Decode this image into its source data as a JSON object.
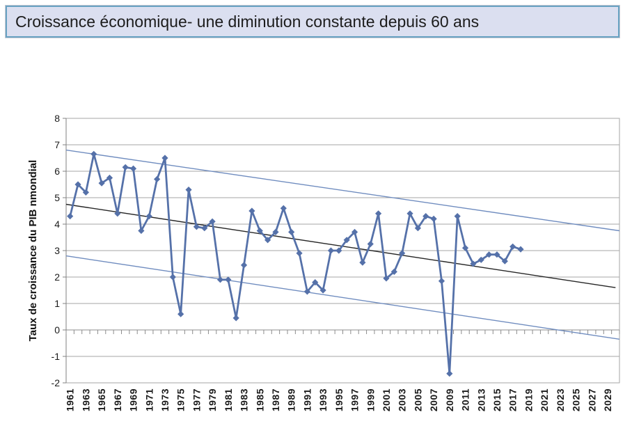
{
  "header": {
    "title": "Croissance économique- une diminution constante depuis 60 ans"
  },
  "chart_data": {
    "type": "line",
    "title": "Croissance économique- une diminution constante depuis 60 ans",
    "xlabel": "",
    "ylabel": "Taux de croissance du PIB nmondial",
    "ylim": [
      -2,
      8
    ],
    "ytick_step": 1,
    "grid": true,
    "legend": false,
    "gridline_color": "#a6a6a6",
    "axis_color": "#808080",
    "x_axis_years": {
      "first_label": 1961,
      "last_label": 2029,
      "label_step": 2,
      "axis_start": 1961,
      "axis_end": 2030
    },
    "series": [
      {
        "name": "Taux de croissance du PIB mondial",
        "color": "#5571a9",
        "marker": "diamond",
        "years": [
          1961,
          1962,
          1963,
          1964,
          1965,
          1966,
          1967,
          1968,
          1969,
          1970,
          1971,
          1972,
          1973,
          1974,
          1975,
          1976,
          1977,
          1978,
          1979,
          1980,
          1981,
          1982,
          1983,
          1984,
          1985,
          1986,
          1987,
          1988,
          1989,
          1990,
          1991,
          1992,
          1993,
          1994,
          1995,
          1996,
          1997,
          1998,
          1999,
          2000,
          2001,
          2002,
          2003,
          2004,
          2005,
          2006,
          2007,
          2008,
          2009,
          2010,
          2011,
          2012,
          2013,
          2014,
          2015,
          2016,
          2017,
          2018
        ],
        "values": [
          4.3,
          5.5,
          5.2,
          6.65,
          5.55,
          5.75,
          4.4,
          6.15,
          6.1,
          3.75,
          4.3,
          5.7,
          6.5,
          2.0,
          0.6,
          5.3,
          3.9,
          3.85,
          4.1,
          1.9,
          1.9,
          0.45,
          2.45,
          4.5,
          3.75,
          3.4,
          3.7,
          4.6,
          3.7,
          2.9,
          1.45,
          1.8,
          1.5,
          3.0,
          3.0,
          3.4,
          3.7,
          2.55,
          3.25,
          4.4,
          1.95,
          2.2,
          2.9,
          4.4,
          3.85,
          4.3,
          4.2,
          1.85,
          -1.65,
          4.3,
          3.1,
          2.5,
          2.65,
          2.85,
          2.85,
          2.6,
          3.15,
          3.05
        ]
      }
    ],
    "trend_lines": [
      {
        "name": "upper-envelope",
        "color": "#6f8cbf",
        "x1": 1960.5,
        "y1": 6.8,
        "x2": 2030.5,
        "y2": 3.75
      },
      {
        "name": "linear-trend",
        "color": "#262626",
        "x1": 1960.5,
        "y1": 4.75,
        "x2": 2030.0,
        "y2": 1.6
      },
      {
        "name": "lower-envelope",
        "color": "#6f8cbf",
        "x1": 1960.5,
        "y1": 2.8,
        "x2": 2030.5,
        "y2": -0.35
      }
    ]
  }
}
